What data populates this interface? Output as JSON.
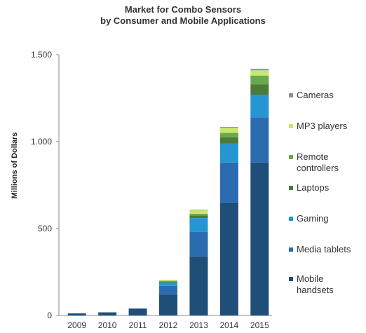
{
  "title": {
    "line1": "Market for Combo Sensors",
    "line2": "by Consumer and Mobile Applications"
  },
  "chart_data": {
    "type": "bar",
    "stacked": true,
    "title": "Market for Combo Sensors by Consumer and Mobile Applications",
    "xlabel": "",
    "ylabel": "Millions of Dollars",
    "ylim": [
      0,
      1500
    ],
    "yticks": [
      0,
      500,
      1000,
      1500
    ],
    "ytick_labels": [
      "0",
      "500",
      "1.000",
      "1.500"
    ],
    "grid": false,
    "legend_position": "right",
    "categories": [
      "2009",
      "2010",
      "2011",
      "2012",
      "2013",
      "2014",
      "2015"
    ],
    "series": [
      {
        "name": "Mobile handsets",
        "color": "#1f4e79",
        "values": [
          12,
          18,
          40,
          120,
          340,
          650,
          880
        ]
      },
      {
        "name": "Media tablets",
        "color": "#2b6cb0",
        "values": [
          0,
          0,
          0,
          50,
          140,
          230,
          260
        ]
      },
      {
        "name": "Gaming",
        "color": "#2596d1",
        "values": [
          0,
          0,
          0,
          20,
          80,
          110,
          130
        ]
      },
      {
        "name": "Laptops",
        "color": "#4c7a3a",
        "values": [
          0,
          0,
          0,
          5,
          15,
          35,
          60
        ]
      },
      {
        "name": "Remote controllers",
        "color": "#6aa84f",
        "values": [
          0,
          0,
          0,
          4,
          10,
          25,
          50
        ]
      },
      {
        "name": "MP3 players",
        "color": "#c9e86a",
        "values": [
          0,
          0,
          0,
          6,
          20,
          30,
          30
        ]
      },
      {
        "name": "Cameras",
        "color": "#7f8fa6",
        "values": [
          0,
          0,
          0,
          0,
          3,
          5,
          8
        ]
      }
    ]
  },
  "legend": [
    {
      "label": "Cameras",
      "color": "#7f8fa6"
    },
    {
      "label": "MP3 players",
      "color": "#c9e86a"
    },
    {
      "label": "Remote controllers",
      "color": "#6aa84f"
    },
    {
      "label": "Laptops",
      "color": "#4c7a3a"
    },
    {
      "label": "Gaming",
      "color": "#2596d1"
    },
    {
      "label": "Media tablets",
      "color": "#2b6cb0"
    },
    {
      "label": "Mobile handsets",
      "color": "#1f4e79"
    }
  ]
}
